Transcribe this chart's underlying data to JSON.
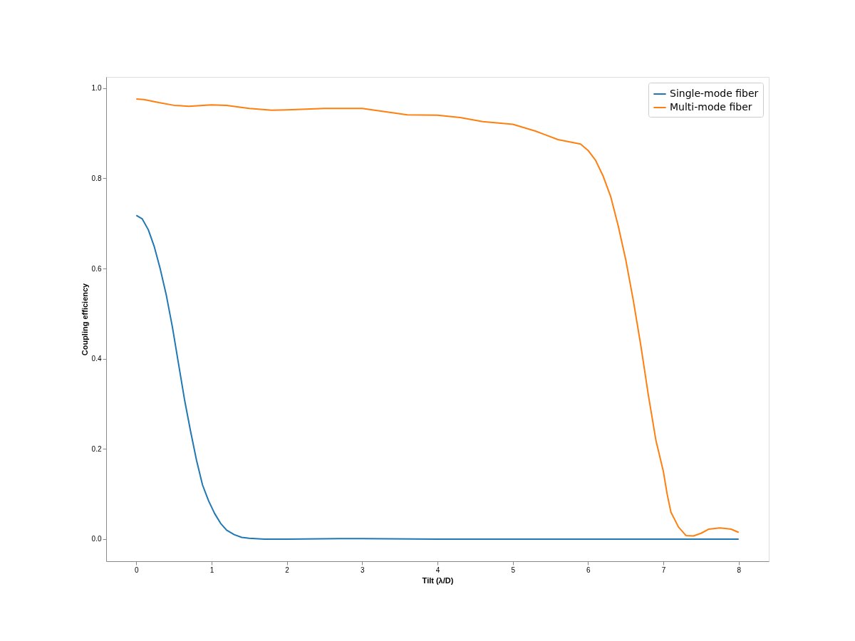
{
  "chart_data": {
    "type": "line",
    "xlabel": "Tilt (λ/D)",
    "ylabel": "Coupling efficiency",
    "xlim": [
      -0.4,
      8.4
    ],
    "ylim": [
      -0.049,
      1.025
    ],
    "xticks": [
      0,
      1,
      2,
      3,
      4,
      5,
      6,
      7,
      8
    ],
    "yticks": [
      {
        "value": 0,
        "label": "0.0"
      },
      {
        "value": 0.2,
        "label": "0.2"
      },
      {
        "value": 0.4,
        "label": "0.4"
      },
      {
        "value": 0.6,
        "label": "0.6"
      },
      {
        "value": 0.8,
        "label": "0.8"
      },
      {
        "value": 1.0,
        "label": "1.0"
      }
    ],
    "legend": "top right",
    "grid": false,
    "line_style": "solid",
    "marker": "none",
    "series": [
      {
        "name": "Single-mode fiber",
        "color": "#1f77b4",
        "x": [
          0,
          0.08,
          0.16,
          0.24,
          0.32,
          0.4,
          0.48,
          0.56,
          0.64,
          0.72,
          0.8,
          0.88,
          0.96,
          1.04,
          1.12,
          1.2,
          1.3,
          1.4,
          1.5,
          1.7,
          2.0,
          2.7,
          3.0,
          4.0,
          5.0,
          6.0,
          7.0,
          8.0
        ],
        "values": [
          0.718,
          0.71,
          0.686,
          0.648,
          0.598,
          0.54,
          0.47,
          0.39,
          0.31,
          0.24,
          0.175,
          0.12,
          0.085,
          0.057,
          0.035,
          0.02,
          0.01,
          0.004,
          0.002,
          0.0,
          0.0,
          0.001,
          0.001,
          0.0,
          0.0,
          0.0,
          0.0,
          0.0
        ]
      },
      {
        "name": "Multi-mode fiber",
        "color": "#ff7f0e",
        "x": [
          0,
          0.1,
          0.3,
          0.5,
          0.7,
          1.0,
          1.2,
          1.5,
          1.8,
          2.0,
          2.5,
          3.0,
          3.3,
          3.6,
          4.0,
          4.3,
          4.6,
          5.0,
          5.3,
          5.6,
          5.9,
          6.0,
          6.1,
          6.2,
          6.3,
          6.4,
          6.5,
          6.6,
          6.7,
          6.8,
          6.9,
          7.0,
          7.05,
          7.1,
          7.2,
          7.3,
          7.4,
          7.5,
          7.6,
          7.75,
          7.9,
          8.0
        ],
        "values": [
          0.976,
          0.975,
          0.968,
          0.962,
          0.96,
          0.963,
          0.962,
          0.955,
          0.951,
          0.952,
          0.955,
          0.955,
          0.948,
          0.941,
          0.94,
          0.935,
          0.926,
          0.92,
          0.905,
          0.886,
          0.876,
          0.862,
          0.84,
          0.805,
          0.76,
          0.695,
          0.62,
          0.53,
          0.43,
          0.32,
          0.22,
          0.15,
          0.1,
          0.06,
          0.027,
          0.008,
          0.007,
          0.013,
          0.022,
          0.025,
          0.022,
          0.015
        ]
      }
    ]
  }
}
